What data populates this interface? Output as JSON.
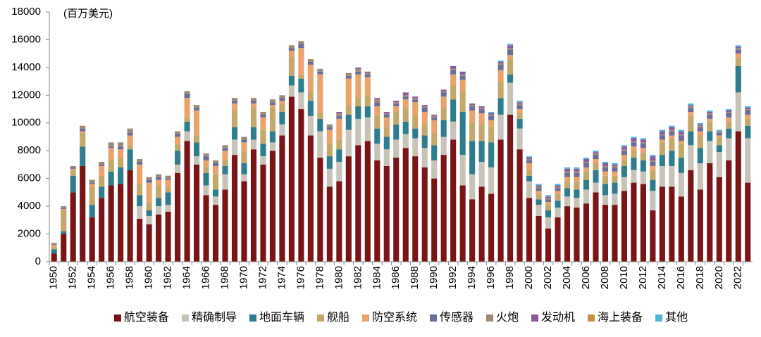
{
  "chart_data": {
    "type": "stacked_bar",
    "unit_label": "(百万美元)",
    "categories": [
      "1950",
      null,
      "1952",
      null,
      "1954",
      null,
      "1956",
      null,
      "1958",
      null,
      "1960",
      null,
      "1962",
      null,
      "1964",
      null,
      "1966",
      null,
      "1968",
      null,
      "1970",
      null,
      "1972",
      null,
      "1974",
      null,
      "1976",
      null,
      "1978",
      null,
      "1980",
      null,
      "1982",
      null,
      "1984",
      null,
      "1986",
      null,
      "1988",
      null,
      "1990",
      null,
      "1992",
      null,
      "1994",
      null,
      "1996",
      null,
      "1998",
      null,
      "2000",
      null,
      "2002",
      null,
      "2004",
      null,
      "2006",
      null,
      "2008",
      null,
      "2010",
      null,
      "2012",
      null,
      "2014",
      null,
      "2016",
      null,
      "2018",
      null,
      "2020",
      null,
      "2022",
      null
    ],
    "ylim": [
      0,
      18000
    ],
    "yticks": [
      0,
      2000,
      4000,
      6000,
      8000,
      10000,
      12000,
      14000,
      16000,
      18000
    ],
    "legend": "bottom",
    "series": [
      {
        "name": "航空装备",
        "color": "#7b1416",
        "values": [
          600,
          2000,
          5000,
          6900,
          3200,
          4600,
          5500,
          5600,
          6600,
          3100,
          2700,
          3400,
          3600,
          6400,
          8700,
          7000,
          4800,
          4100,
          5200,
          7700,
          5800,
          8100,
          7000,
          8000,
          9100,
          11900,
          11000,
          9100,
          7500,
          5400,
          5800,
          7600,
          8400,
          8700,
          7300,
          6900,
          7500,
          8200,
          7600,
          6800,
          6000,
          7700,
          8800,
          5500,
          4500,
          5400,
          4900,
          8800,
          10600,
          8100,
          4600,
          3300,
          2400,
          3200,
          4000,
          3900,
          4200,
          5000,
          4100,
          4100,
          5100,
          5700,
          5600,
          3700,
          5400,
          5400,
          4700,
          6600,
          5200,
          7100,
          6100,
          7300,
          9400,
          5700
        ]
      },
      {
        "name": "精确制导",
        "color": "#c7c3b8",
        "values": [
          0,
          0,
          0,
          0,
          0,
          0,
          0,
          0,
          0,
          900,
          600,
          600,
          500,
          600,
          700,
          600,
          700,
          600,
          1100,
          1100,
          500,
          700,
          600,
          600,
          800,
          800,
          1200,
          1400,
          1900,
          1300,
          1400,
          1900,
          1900,
          1700,
          1200,
          1200,
          1300,
          1000,
          1300,
          1400,
          1300,
          1300,
          1300,
          2200,
          1800,
          1800,
          1900,
          1800,
          2300,
          1500,
          1200,
          800,
          800,
          700,
          700,
          700,
          1000,
          700,
          700,
          800,
          1000,
          900,
          900,
          1400,
          1500,
          1500,
          1700,
          1800,
          1900,
          1600,
          1800,
          1600,
          2800,
          3200
        ]
      },
      {
        "name": "地面车辆",
        "color": "#2e7d8c",
        "values": [
          300,
          200,
          1200,
          1400,
          900,
          800,
          1000,
          1200,
          1500,
          800,
          400,
          600,
          900,
          1000,
          700,
          1000,
          900,
          500,
          600,
          900,
          800,
          900,
          900,
          800,
          900,
          700,
          1000,
          1100,
          900,
          900,
          900,
          1100,
          900,
          800,
          1100,
          900,
          1100,
          900,
          700,
          900,
          1100,
          1200,
          1600,
          3100,
          2400,
          1500,
          1800,
          1200,
          600,
          700,
          400,
          400,
          500,
          500,
          600,
          600,
          700,
          900,
          800,
          800,
          800,
          900,
          800,
          800,
          800,
          1100,
          1100,
          1000,
          1100,
          700,
          500,
          700,
          1900,
          900
        ]
      },
      {
        "name": "舰船",
        "color": "#c4a86a",
        "values": [
          200,
          1500,
          400,
          1000,
          1300,
          800,
          900,
          700,
          300,
          800,
          600,
          900,
          400,
          500,
          300,
          500,
          400,
          1100,
          400,
          1200,
          900,
          1400,
          1000,
          1700,
          600,
          1400,
          300,
          700,
          400,
          900,
          700,
          700,
          600,
          800,
          900,
          700,
          900,
          1000,
          1000,
          800,
          900,
          900,
          1000,
          1500,
          1300,
          1200,
          1100,
          1200,
          1100,
          400,
          400,
          400,
          400,
          500,
          500,
          600,
          600,
          500,
          600,
          500,
          400,
          500,
          600,
          700,
          900,
          900,
          1000,
          1100,
          900,
          700,
          500,
          500,
          600,
          500
        ]
      },
      {
        "name": "防空系统",
        "color": "#e9a36b",
        "values": [
          100,
          100,
          100,
          100,
          200,
          700,
          800,
          600,
          700,
          1400,
          1400,
          400,
          500,
          500,
          1400,
          1800,
          500,
          600,
          700,
          500,
          600,
          300,
          900,
          200,
          200,
          400,
          1900,
          1900,
          2800,
          1000,
          1500,
          1900,
          1700,
          1300,
          700,
          700,
          400,
          600,
          900,
          900,
          900,
          800,
          800,
          800,
          900,
          800,
          500,
          800,
          300,
          300,
          500,
          200,
          200,
          200,
          300,
          300,
          300,
          300,
          300,
          300,
          400,
          300,
          300,
          300,
          200,
          200,
          200,
          300,
          300,
          200,
          200,
          300,
          300,
          300
        ]
      },
      {
        "name": "传感器",
        "color": "#6b6d9a",
        "values": [
          50,
          50,
          100,
          200,
          100,
          100,
          100,
          200,
          200,
          200,
          200,
          200,
          100,
          200,
          300,
          200,
          300,
          200,
          200,
          200,
          200,
          200,
          200,
          200,
          200,
          200,
          300,
          200,
          200,
          200,
          200,
          200,
          200,
          200,
          300,
          200,
          200,
          200,
          200,
          300,
          200,
          300,
          300,
          300,
          300,
          300,
          300,
          400,
          400,
          300,
          200,
          200,
          200,
          200,
          300,
          300,
          300,
          300,
          300,
          300,
          300,
          300,
          300,
          300,
          300,
          300,
          400,
          300,
          300,
          300,
          200,
          300,
          300,
          300
        ]
      },
      {
        "name": "火炮",
        "color": "#9e8a74",
        "values": [
          100,
          150,
          100,
          200,
          200,
          200,
          300,
          300,
          300,
          200,
          200,
          200,
          200,
          200,
          200,
          200,
          200,
          200,
          200,
          200,
          200,
          200,
          200,
          200,
          200,
          200,
          200,
          200,
          200,
          200,
          200,
          200,
          200,
          100,
          200,
          100,
          100,
          100,
          100,
          100,
          100,
          100,
          100,
          100,
          100,
          100,
          100,
          100,
          100,
          100,
          100,
          100,
          100,
          100,
          100,
          100,
          100,
          100,
          100,
          100,
          100,
          100,
          100,
          100,
          100,
          100,
          100,
          100,
          100,
          100,
          100,
          100,
          100,
          100
        ]
      },
      {
        "name": "发动机",
        "color": "#8a5a9c",
        "values": [
          0,
          0,
          0,
          0,
          0,
          0,
          0,
          0,
          0,
          0,
          0,
          0,
          0,
          0,
          0,
          0,
          0,
          0,
          0,
          0,
          0,
          0,
          0,
          0,
          0,
          0,
          0,
          0,
          0,
          0,
          100,
          0,
          100,
          100,
          100,
          100,
          100,
          200,
          100,
          100,
          100,
          100,
          200,
          200,
          100,
          100,
          100,
          100,
          200,
          100,
          100,
          100,
          100,
          100,
          200,
          200,
          200,
          100,
          200,
          100,
          200,
          200,
          200,
          300,
          200,
          200,
          200,
          100,
          100,
          100,
          0,
          100,
          100,
          100
        ]
      },
      {
        "name": "海上装备",
        "color": "#c79040",
        "values": [
          0,
          0,
          0,
          0,
          0,
          0,
          0,
          0,
          0,
          0,
          0,
          0,
          0,
          0,
          0,
          0,
          0,
          0,
          0,
          0,
          0,
          0,
          0,
          0,
          0,
          0,
          0,
          0,
          0,
          0,
          0,
          0,
          0,
          0,
          0,
          0,
          0,
          0,
          0,
          0,
          0,
          0,
          0,
          0,
          0,
          0,
          0,
          0,
          0,
          0,
          0,
          0,
          0,
          0,
          0,
          0,
          0,
          0,
          0,
          0,
          0,
          0,
          0,
          0,
          0,
          0,
          0,
          0,
          0,
          0,
          0,
          0,
          0,
          0
        ]
      },
      {
        "name": "其他",
        "color": "#4fb8d8",
        "values": [
          0,
          0,
          0,
          0,
          0,
          0,
          0,
          0,
          0,
          0,
          0,
          0,
          0,
          0,
          0,
          0,
          0,
          0,
          0,
          0,
          0,
          0,
          0,
          0,
          0,
          0,
          0,
          0,
          0,
          0,
          0,
          0,
          0,
          0,
          0,
          0,
          0,
          0,
          0,
          0,
          0,
          0,
          0,
          0,
          0,
          0,
          100,
          100,
          100,
          100,
          100,
          100,
          100,
          100,
          100,
          100,
          100,
          100,
          100,
          100,
          100,
          100,
          100,
          100,
          100,
          100,
          100,
          100,
          100,
          100,
          100,
          100,
          100,
          100
        ]
      }
    ]
  }
}
